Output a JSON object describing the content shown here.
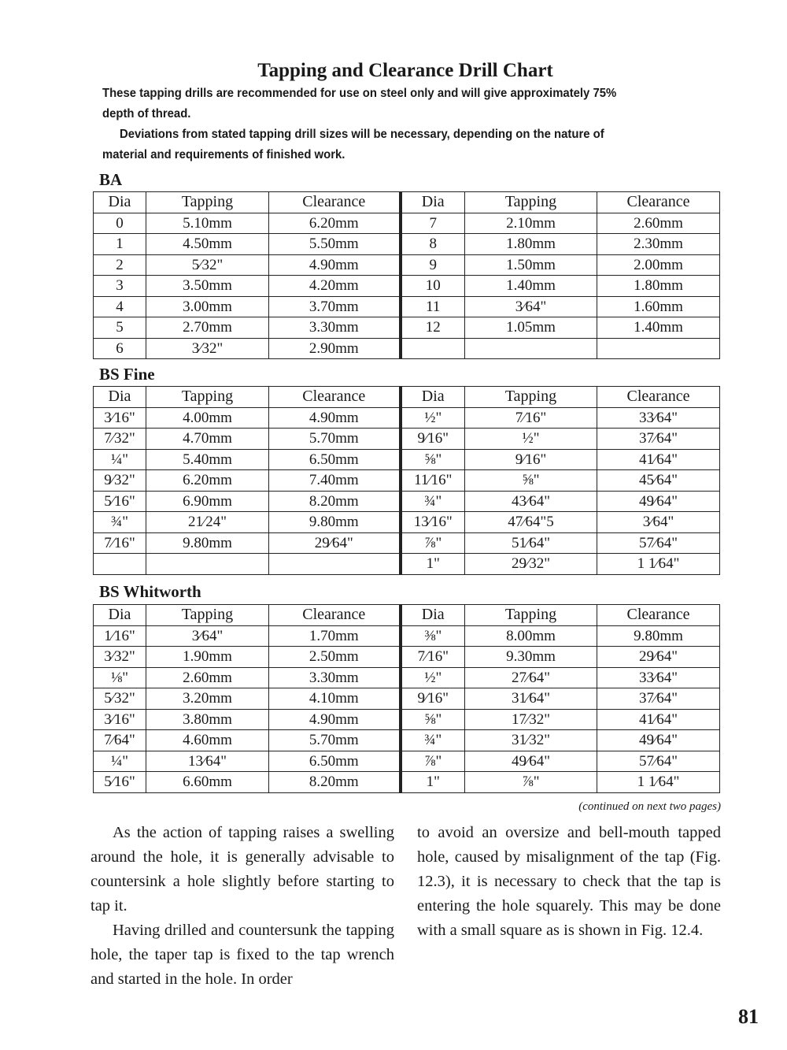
{
  "title": "Tapping and Clearance Drill Chart",
  "intro": [
    "These tapping drills are recommended for use on steel only and will give approximately 75%",
    "depth of thread.",
    "Deviations from stated tapping drill sizes will be necessary, depending on the nature of",
    "material and requirements of finished work."
  ],
  "headers": [
    "Dia",
    "Tapping",
    "Clearance",
    "Dia",
    "Tapping",
    "Clearance"
  ],
  "tables": [
    {
      "label": "BA",
      "rows": [
        [
          "0",
          "5.10mm",
          "6.20mm",
          "7",
          "2.10mm",
          "2.60mm"
        ],
        [
          "1",
          "4.50mm",
          "5.50mm",
          "8",
          "1.80mm",
          "2.30mm"
        ],
        [
          "2",
          "5⁄32\"",
          "4.90mm",
          "9",
          "1.50mm",
          "2.00mm"
        ],
        [
          "3",
          "3.50mm",
          "4.20mm",
          "10",
          "1.40mm",
          "1.80mm"
        ],
        [
          "4",
          "3.00mm",
          "3.70mm",
          "11",
          "3⁄64\"",
          "1.60mm"
        ],
        [
          "5",
          "2.70mm",
          "3.30mm",
          "12",
          "1.05mm",
          "1.40mm"
        ],
        [
          "6",
          "3⁄32\"",
          "2.90mm",
          "",
          "",
          ""
        ]
      ]
    },
    {
      "label": "BS Fine",
      "rows": [
        [
          "3⁄16\"",
          "4.00mm",
          "4.90mm",
          "½\"",
          "7⁄16\"",
          "33⁄64\""
        ],
        [
          "7⁄32\"",
          "4.70mm",
          "5.70mm",
          "9⁄16\"",
          "½\"",
          "37⁄64\""
        ],
        [
          "¼\"",
          "5.40mm",
          "6.50mm",
          "⅝\"",
          "9⁄16\"",
          "41⁄64\""
        ],
        [
          "9⁄32\"",
          "6.20mm",
          "7.40mm",
          "11⁄16\"",
          "⅝\"",
          "45⁄64\""
        ],
        [
          "5⁄16\"",
          "6.90mm",
          "8.20mm",
          "¾\"",
          "43⁄64\"",
          "49⁄64\""
        ],
        [
          "¾\"",
          "21⁄24\"",
          "9.80mm",
          "13⁄16\"",
          "47⁄64\"5",
          "3⁄64\""
        ],
        [
          "7⁄16\"",
          "9.80mm",
          "29⁄64\"",
          "⅞\"",
          "51⁄64\"",
          "57⁄64\""
        ],
        [
          "",
          "",
          "",
          "1\"",
          "29⁄32\"",
          "1 1⁄64\""
        ]
      ]
    },
    {
      "label": "BS Whitworth",
      "rows": [
        [
          "1⁄16\"",
          "3⁄64\"",
          "1.70mm",
          "⅜\"",
          "8.00mm",
          "9.80mm"
        ],
        [
          "3⁄32\"",
          "1.90mm",
          "2.50mm",
          "7⁄16\"",
          "9.30mm",
          "29⁄64\""
        ],
        [
          "⅛\"",
          "2.60mm",
          "3.30mm",
          "½\"",
          "27⁄64\"",
          "33⁄64\""
        ],
        [
          "5⁄32\"",
          "3.20mm",
          "4.10mm",
          "9⁄16\"",
          "31⁄64\"",
          "37⁄64\""
        ],
        [
          "3⁄16\"",
          "3.80mm",
          "4.90mm",
          "⅝\"",
          "17⁄32\"",
          "41⁄64\""
        ],
        [
          "7⁄64\"",
          "4.60mm",
          "5.70mm",
          "¾\"",
          "31⁄32\"",
          "49⁄64\""
        ],
        [
          "¼\"",
          "13⁄64\"",
          "6.50mm",
          "⅞\"",
          "49⁄64\"",
          "57⁄64\""
        ],
        [
          "5⁄16\"",
          "6.60mm",
          "8.20mm",
          "1\"",
          "⅞\"",
          "1 1⁄64\""
        ]
      ]
    }
  ],
  "continued": "(continued on next two pages)",
  "body_left": [
    "As the action of tapping raises a swelling around the hole, it is generally advisable to countersink a hole slightly before starting to tap it.",
    "Having drilled and countersunk the tapping hole, the taper tap is fixed to the tap wrench and started in the hole. In order"
  ],
  "body_right": "to avoid an oversize and bell-mouth tapped hole, caused by misalignment of the tap (Fig. 12.3), it is necessary to check that the tap is entering the hole squarely. This may be done with a small square as is shown in Fig. 12.4.",
  "page_number": "81"
}
